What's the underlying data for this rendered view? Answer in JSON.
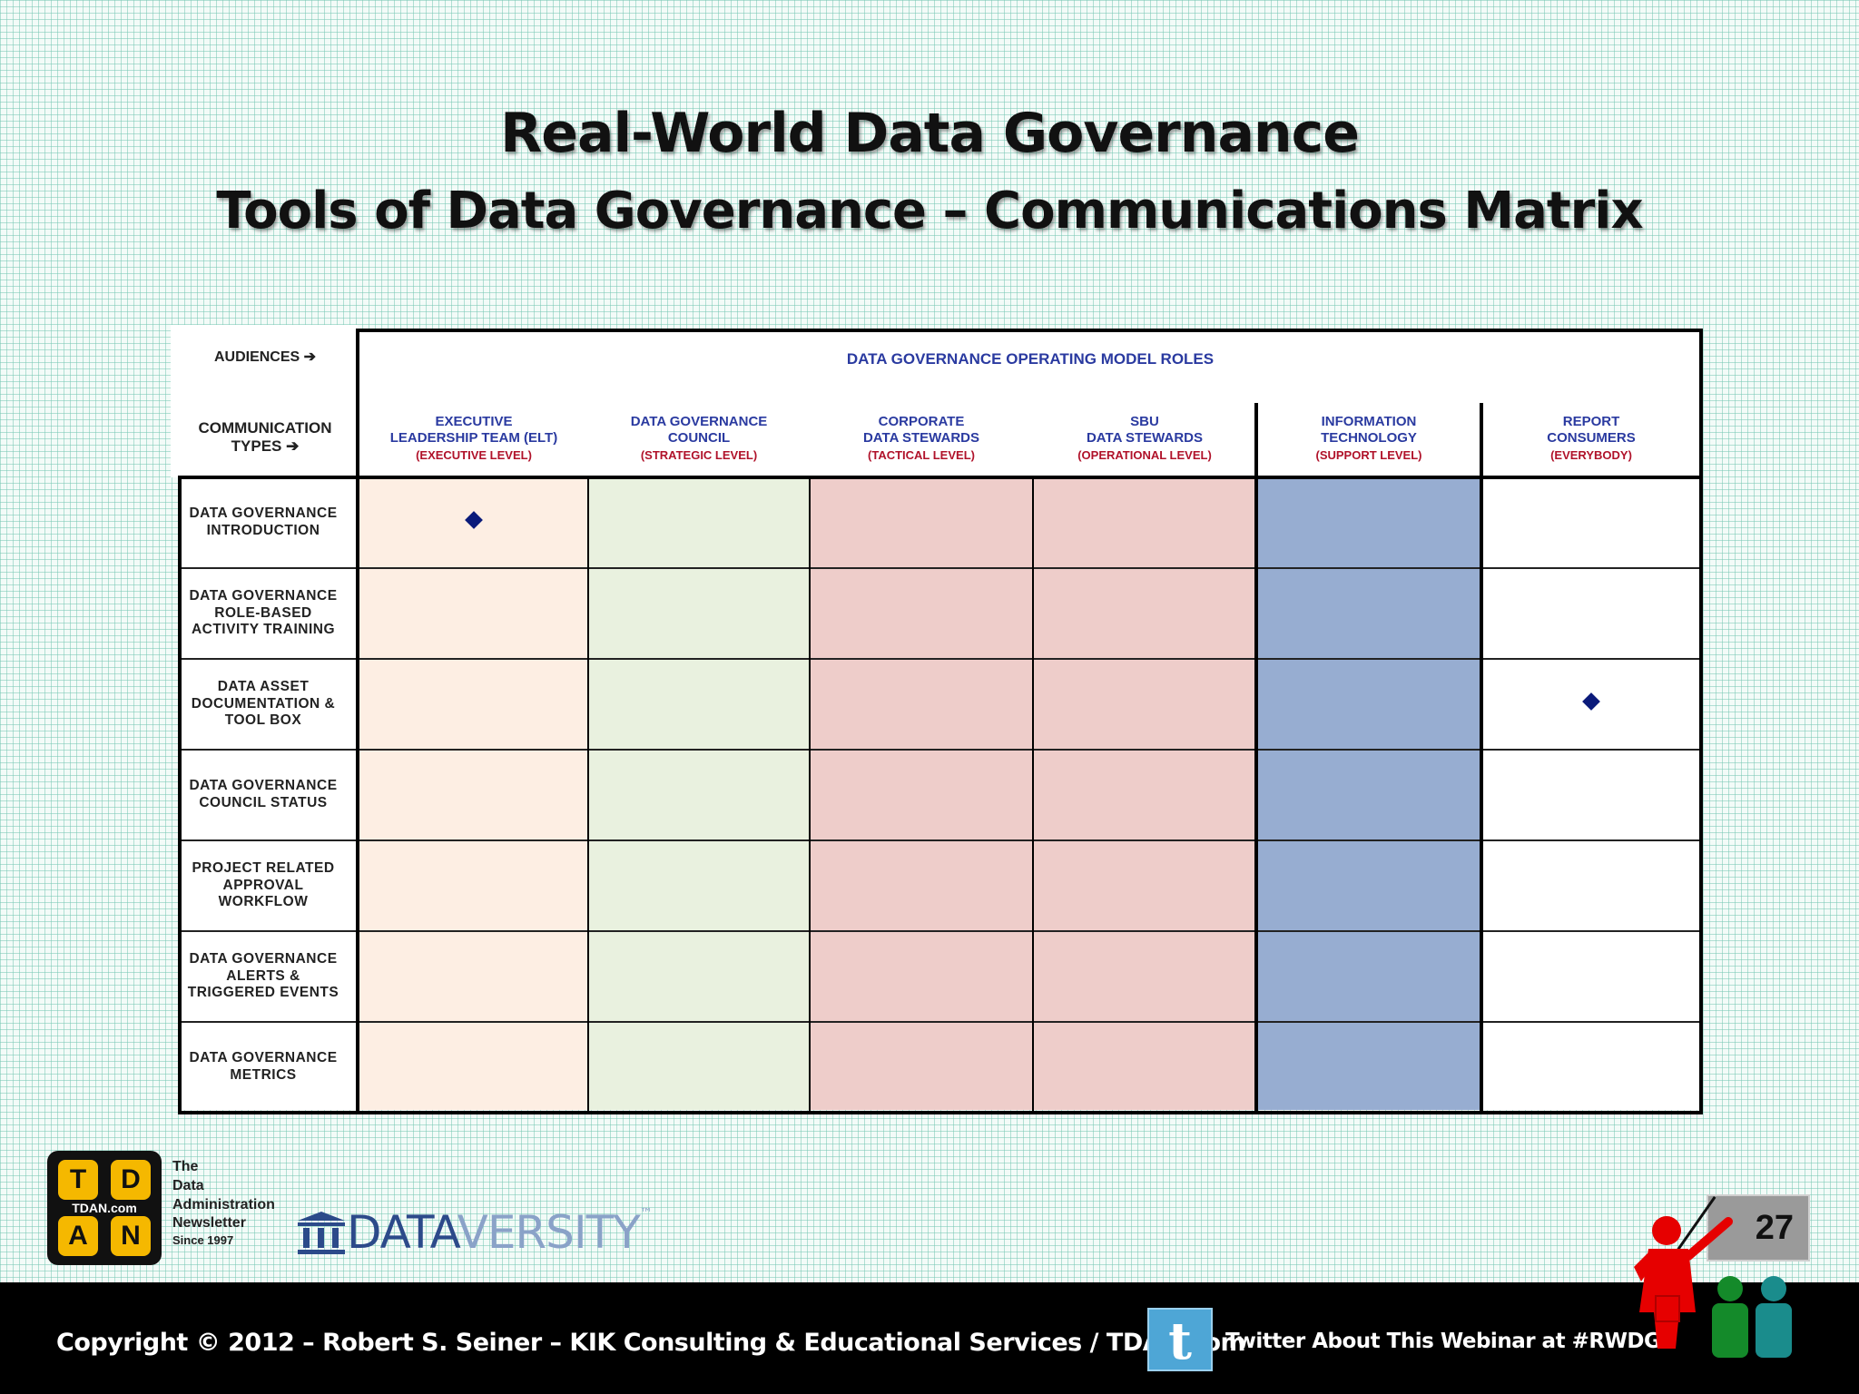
{
  "title": "Real-World Data Governance",
  "subtitle": "Tools of Data Governance – Communications Matrix",
  "matrix": {
    "audiences_label": "AUDIENCES ➔",
    "comm_types_label": "COMMUNICATION TYPES ➔",
    "comm_types_line1": "COMMUNICATION",
    "comm_types_line2": "TYPES ➔",
    "roles_title": "DATA GOVERNANCE OPERATING MODEL ROLES",
    "roles": [
      {
        "l1": "EXECUTIVE",
        "l2": "LEADERSHIP TEAM (ELT)",
        "level": "(EXECUTIVE LEVEL)",
        "color": "#fdeee3"
      },
      {
        "l1": "DATA GOVERNANCE",
        "l2": "COUNCIL",
        "level": "(STRATEGIC LEVEL)",
        "color": "#e9f1df"
      },
      {
        "l1": "CORPORATE",
        "l2": "DATA STEWARDS",
        "level": "(TACTICAL LEVEL)",
        "color": "#eecdca"
      },
      {
        "l1": "SBU",
        "l2": "DATA STEWARDS",
        "level": "(OPERATIONAL LEVEL)",
        "color": "#eecdca"
      },
      {
        "l1": "INFORMATION",
        "l2": "TECHNOLOGY",
        "level": "(SUPPORT LEVEL)",
        "color": "#97add1"
      },
      {
        "l1": "REPORT",
        "l2": "CONSUMERS",
        "level": "(EVERYBODY)",
        "color": "#ffffff"
      }
    ],
    "rows": [
      {
        "l1": "DATA GOVERNANCE",
        "l2": "INTRODUCTION",
        "l3": ""
      },
      {
        "l1": "DATA GOVERNANCE",
        "l2": "ROLE-BASED",
        "l3": "ACTIVITY TRAINING"
      },
      {
        "l1": "DATA ASSET",
        "l2": "DOCUMENTATION &",
        "l3": "TOOL BOX"
      },
      {
        "l1": "DATA GOVERNANCE",
        "l2": "COUNCIL STATUS",
        "l3": ""
      },
      {
        "l1": "PROJECT RELATED",
        "l2": "APPROVAL",
        "l3": "WORKFLOW"
      },
      {
        "l1": "DATA GOVERNANCE",
        "l2": "ALERTS &",
        "l3": "TRIGGERED EVENTS"
      },
      {
        "l1": "DATA GOVERNANCE",
        "l2": "METRICS",
        "l3": ""
      }
    ],
    "marks": [
      {
        "row": 0,
        "col": 0
      },
      {
        "row": 2,
        "col": 5
      }
    ]
  },
  "logo": {
    "tiles": [
      "T",
      "D",
      "A",
      "N"
    ],
    "domain": "TDAN.com",
    "line1": "The",
    "line2": "Data",
    "line3": "Administration",
    "line4": "Newsletter",
    "line5": "Since 1997"
  },
  "dataversity": {
    "part1": "DATA",
    "part2": "VERSITY",
    "tm": "™"
  },
  "slide_number": "27",
  "footer": {
    "copyright": "Copyright © 2012 – Robert S. Seiner – KIK Consulting & Educational Services / TDAN.com",
    "twitter_text": "Twitter About This Webinar at #RWDG"
  },
  "colors": {
    "role_title": "#2a3aa0",
    "level_text": "#b0122a",
    "footer_bg": "#000000"
  },
  "icons": [
    "diamond-marker",
    "twitter-icon",
    "presenter-icon",
    "audience-icon",
    "tdan-logo",
    "dataversity-logo"
  ]
}
